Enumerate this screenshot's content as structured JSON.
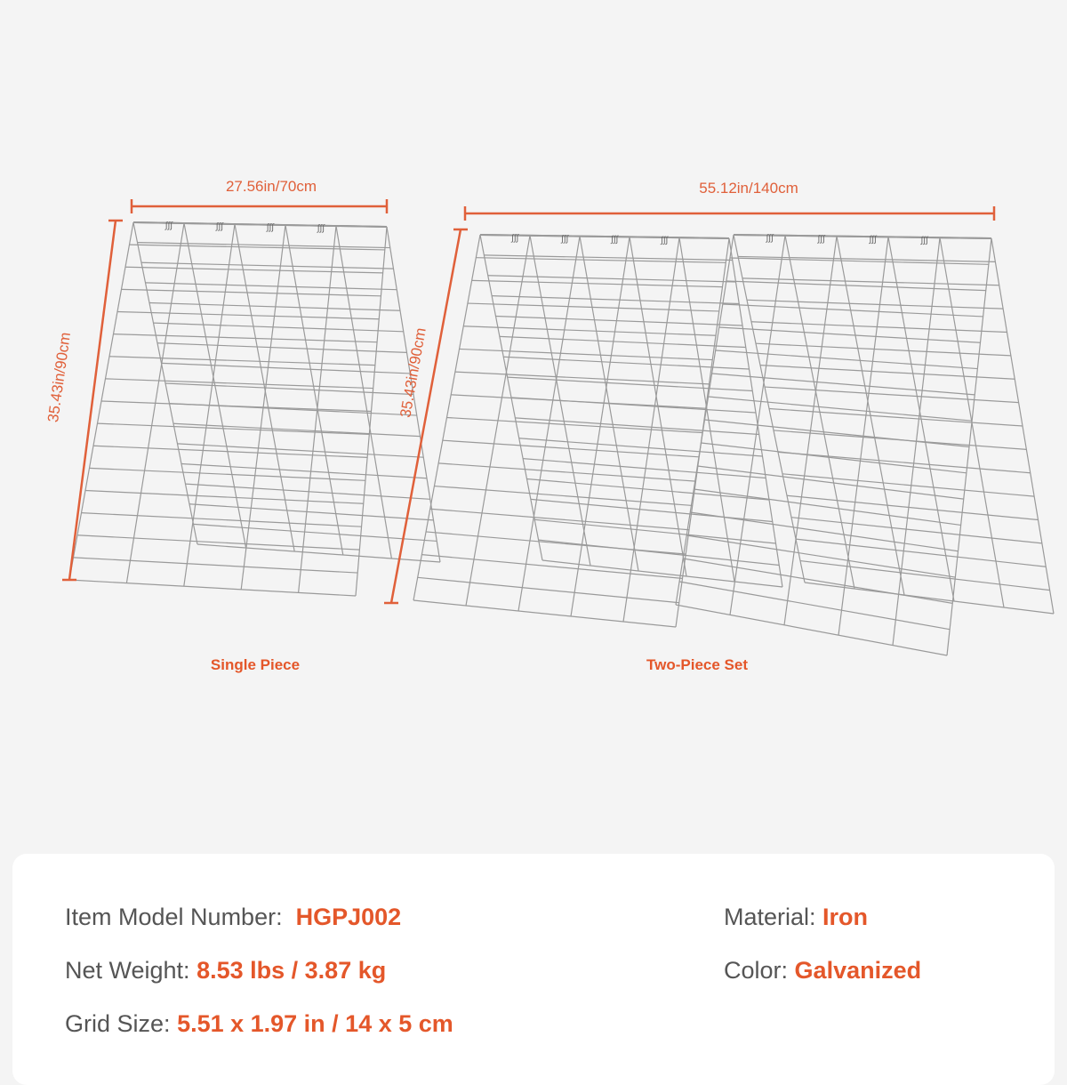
{
  "colors": {
    "accent": "#e4572a",
    "background": "#f4f4f4",
    "wire": "#9a9a9a"
  },
  "dimensions": {
    "single_width": "27.56in/70cm",
    "single_height": "35.43in/90cm",
    "set_width": "55.12in/140cm",
    "set_height": "35.43in/90cm"
  },
  "captions": {
    "single": "Single Piece",
    "set": "Two-Piece Set"
  },
  "specs": {
    "model_label": "Item Model Number:",
    "model_value": "HGPJ002",
    "weight_label": "Net Weight:",
    "weight_value": "8.53 lbs / 3.87 kg",
    "grid_label": "Grid Size:",
    "grid_value": "5.51 x 1.97 in / 14 x 5 cm",
    "material_label": "Material:",
    "material_value": "Iron",
    "color_label": "Color:",
    "color_value": "Galvanized"
  }
}
